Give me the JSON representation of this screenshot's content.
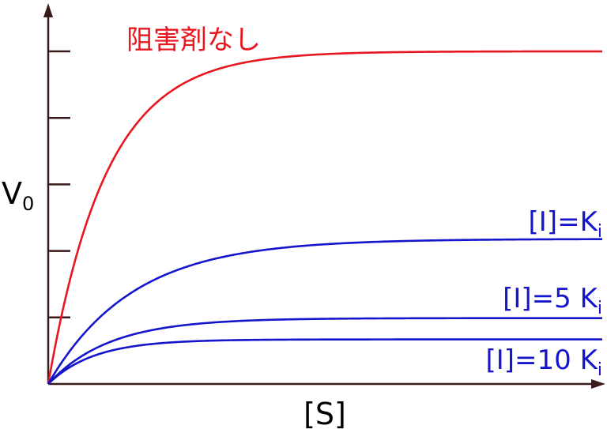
{
  "chart_data": {
    "type": "line",
    "xlabel": "[S]",
    "ylabel_main": "V",
    "ylabel_sub": "0",
    "xlim": [
      0,
      8
    ],
    "ylim": [
      0,
      5
    ],
    "yticks": [
      1,
      2,
      3,
      4,
      5
    ],
    "axis_color": "#3a1a1a",
    "series": [
      {
        "name": "阻害剤なし",
        "name_main": "阻害剤なし",
        "name_sub": "",
        "color": "#e8161e",
        "vmax": 5.0,
        "k": 0.38
      },
      {
        "name": "[I]=Ki",
        "name_main": "[I]=K",
        "name_sub": "i",
        "color": "#1515cc",
        "vmax": 2.18,
        "k": 0.55
      },
      {
        "name": "[I]=5 Ki",
        "name_main": "[I]=5 K",
        "name_sub": "i",
        "color": "#1515cc",
        "vmax": 0.99,
        "k": 0.4
      },
      {
        "name": "[I]=10 Ki",
        "name_main": "[I]=10 K",
        "name_sub": "i",
        "color": "#1515cc",
        "vmax": 0.67,
        "k": 0.3
      }
    ]
  }
}
